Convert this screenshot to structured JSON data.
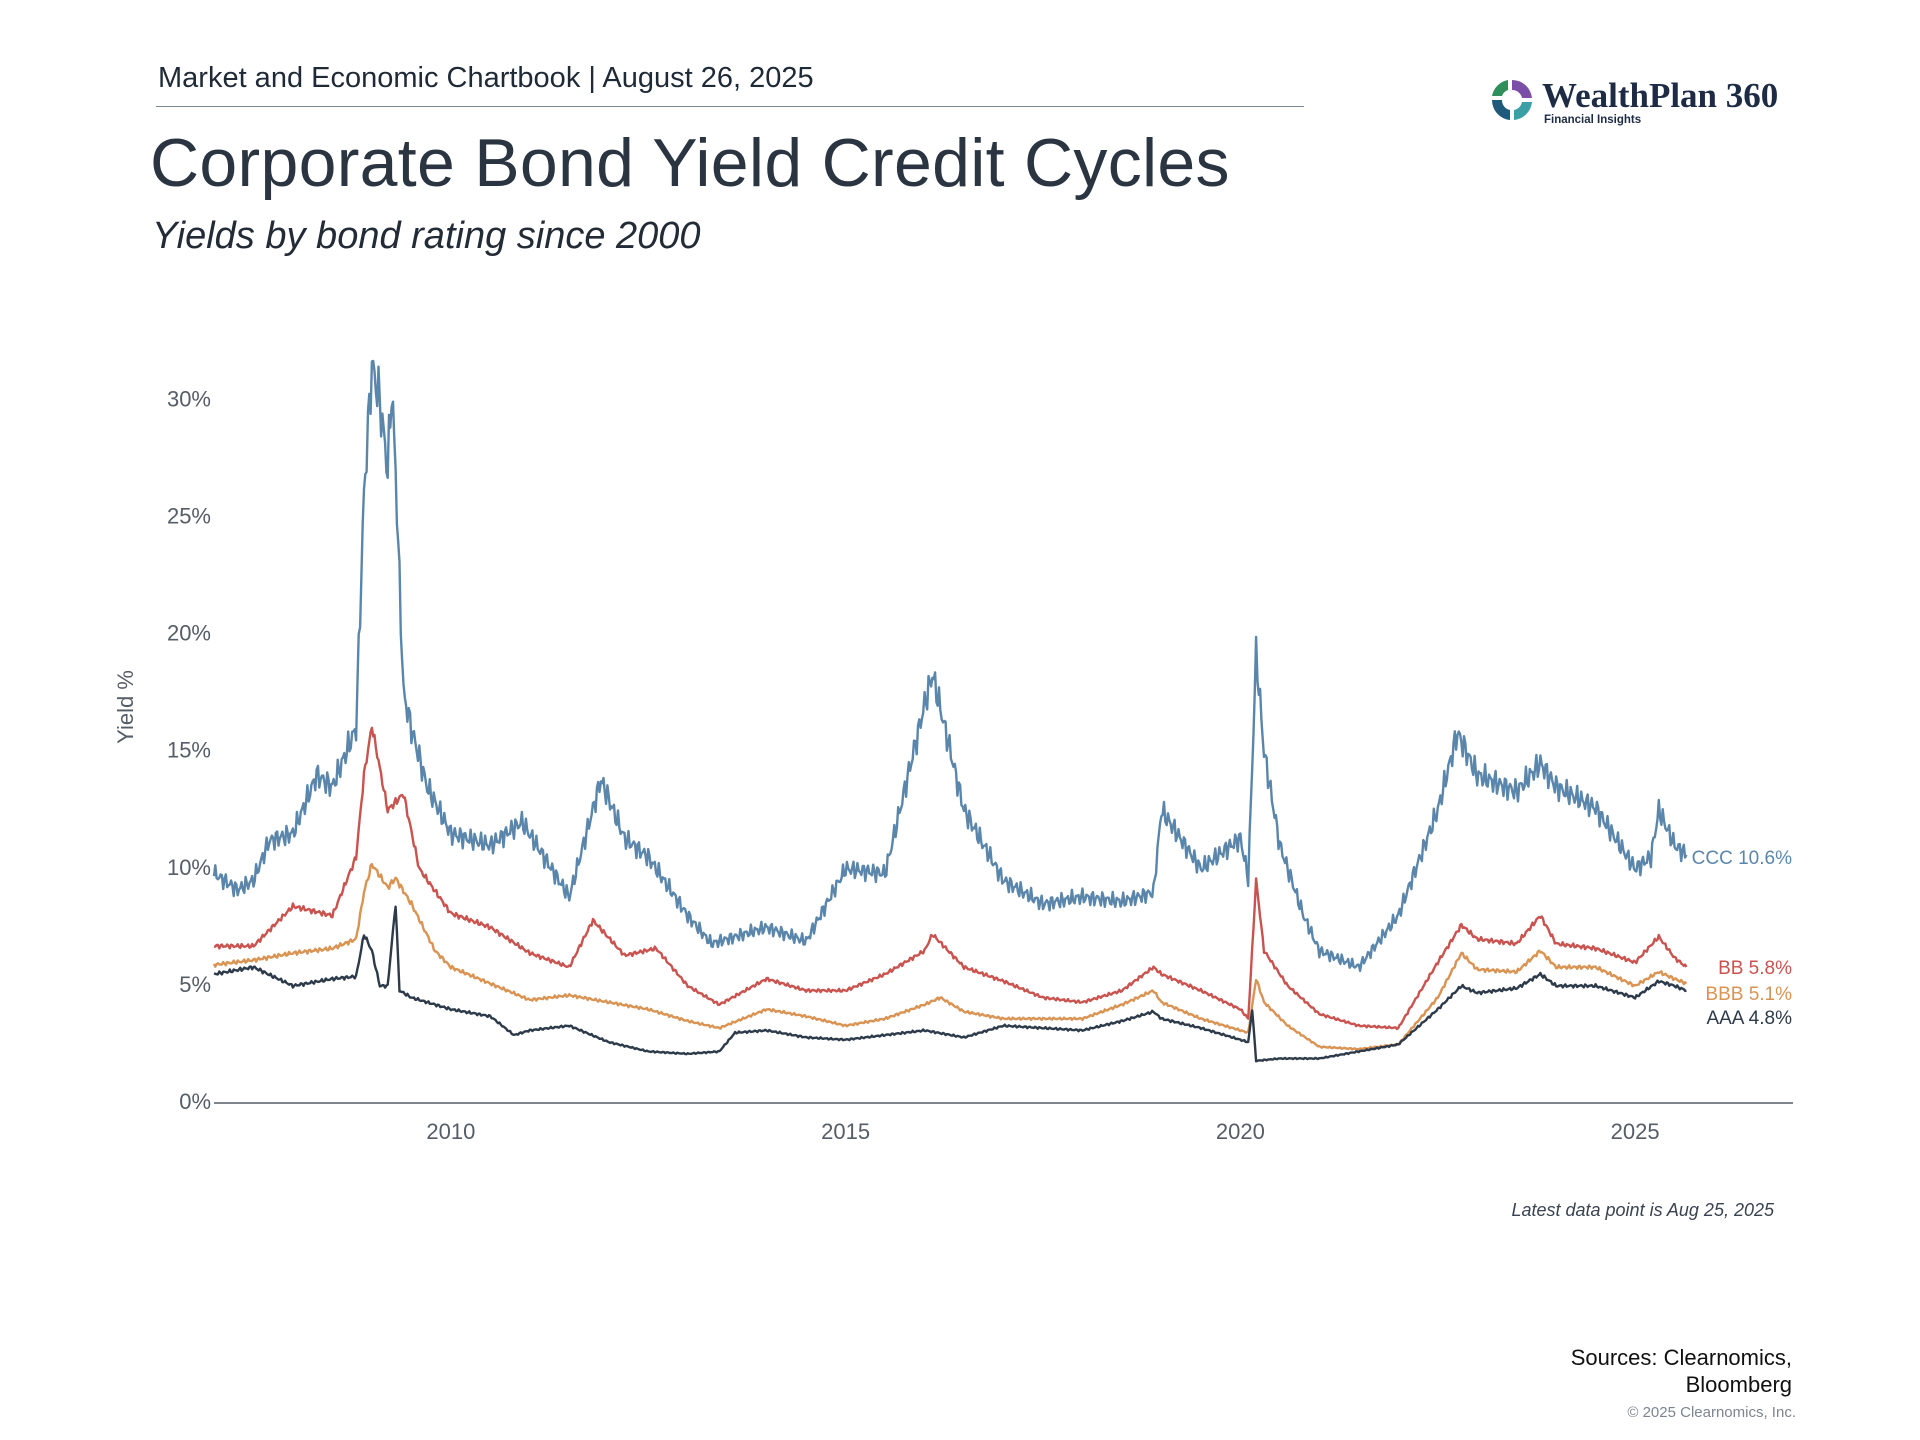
{
  "header": {
    "chartbook": "Market and Economic Chartbook | August 26, 2025",
    "title": "Corporate Bond Yield Credit Cycles",
    "subtitle": "Yields by bond rating since 2000"
  },
  "logo": {
    "name": "WealthPlan 360",
    "tagline": "Financial Insights"
  },
  "footer": {
    "note": "Latest data point is Aug 25, 2025",
    "sources_line1": "Sources: Clearnomics,",
    "sources_line2": "Bloomberg",
    "copyright": "© 2025 Clearnomics, Inc."
  },
  "chart_data": {
    "type": "line",
    "ylabel": "Yield %",
    "xlim": [
      2007.0,
      2027.0
    ],
    "ylim": [
      0,
      33
    ],
    "y_ticks": [
      0,
      5,
      10,
      15,
      20,
      25,
      30
    ],
    "y_tick_labels": [
      "0%",
      "5%",
      "10%",
      "15%",
      "20%",
      "25%",
      "30%"
    ],
    "x_ticks": [
      2010,
      2015,
      2020,
      2025
    ],
    "x_tick_labels": [
      "2010",
      "2015",
      "2020",
      "2025"
    ],
    "grid": false,
    "series": [
      {
        "name": "CCC",
        "end_label": "CCC 10.6%",
        "color": "#5b86ab",
        "x": [
          2007.0,
          2007.3,
          2007.5,
          2007.7,
          2008.0,
          2008.3,
          2008.5,
          2008.7,
          2008.8,
          2008.9,
          2009.0,
          2009.1,
          2009.2,
          2009.25,
          2009.3,
          2009.4,
          2009.5,
          2009.7,
          2010.0,
          2010.5,
          2010.9,
          2011.5,
          2011.9,
          2012.2,
          2012.5,
          2013.0,
          2013.3,
          2014.0,
          2014.5,
          2015.0,
          2015.5,
          2016.0,
          2016.1,
          2016.5,
          2017.0,
          2017.5,
          2018.0,
          2018.5,
          2018.9,
          2019.0,
          2019.5,
          2020.0,
          2020.1,
          2020.2,
          2020.3,
          2020.5,
          2020.8,
          2021.0,
          2021.5,
          2022.0,
          2022.5,
          2022.75,
          2023.0,
          2023.5,
          2023.8,
          2024.0,
          2024.5,
          2025.0,
          2025.2,
          2025.3,
          2025.5,
          2025.65
        ],
        "y": [
          9.8,
          9.1,
          9.5,
          11.2,
          11.5,
          14.0,
          13.5,
          15.2,
          16.0,
          26.0,
          31.5,
          30.0,
          27.0,
          30.5,
          27.0,
          17.5,
          16.0,
          13.5,
          11.5,
          11.0,
          12.0,
          8.8,
          13.8,
          11.3,
          10.5,
          8.0,
          6.8,
          7.5,
          6.9,
          10.0,
          9.8,
          17.0,
          18.3,
          12.5,
          9.5,
          8.5,
          8.8,
          8.6,
          9.0,
          12.5,
          10.0,
          11.3,
          9.6,
          19.2,
          15.0,
          11.0,
          8.0,
          6.5,
          5.8,
          8.0,
          12.5,
          15.8,
          14.0,
          13.3,
          14.5,
          13.5,
          12.6,
          10.0,
          10.5,
          12.5,
          11.0,
          10.6
        ]
      },
      {
        "name": "BB",
        "end_label": "BB 5.8%",
        "color": "#c9534f",
        "x": [
          2007.0,
          2007.5,
          2008.0,
          2008.5,
          2008.8,
          2008.9,
          2009.0,
          2009.2,
          2009.4,
          2009.6,
          2010.0,
          2010.5,
          2011.0,
          2011.5,
          2011.8,
          2012.2,
          2012.6,
          2013.0,
          2013.4,
          2014.0,
          2014.5,
          2015.0,
          2015.5,
          2016.0,
          2016.1,
          2016.5,
          2017.0,
          2017.5,
          2018.0,
          2018.5,
          2018.9,
          2019.0,
          2019.5,
          2020.0,
          2020.1,
          2020.2,
          2020.3,
          2020.6,
          2021.0,
          2021.5,
          2022.0,
          2022.5,
          2022.8,
          2023.0,
          2023.5,
          2023.8,
          2024.0,
          2024.5,
          2025.0,
          2025.3,
          2025.5,
          2025.65
        ],
        "y": [
          6.7,
          6.7,
          8.4,
          8.0,
          10.5,
          14.0,
          16.1,
          12.5,
          13.2,
          10.0,
          8.1,
          7.5,
          6.4,
          5.8,
          7.8,
          6.3,
          6.6,
          5.0,
          4.2,
          5.3,
          4.8,
          4.8,
          5.5,
          6.5,
          7.2,
          5.8,
          5.2,
          4.5,
          4.3,
          4.8,
          5.8,
          5.5,
          4.8,
          4.0,
          3.6,
          9.5,
          6.5,
          5.0,
          3.8,
          3.3,
          3.2,
          6.0,
          7.6,
          7.0,
          6.8,
          8.0,
          6.8,
          6.6,
          6.0,
          7.1,
          6.2,
          5.8
        ]
      },
      {
        "name": "BBB",
        "end_label": "BBB 5.1%",
        "color": "#d99353",
        "x": [
          2007.0,
          2007.5,
          2008.0,
          2008.5,
          2008.8,
          2008.9,
          2009.0,
          2009.2,
          2009.3,
          2009.5,
          2009.8,
          2010.0,
          2010.5,
          2011.0,
          2011.5,
          2012.0,
          2012.5,
          2013.0,
          2013.4,
          2014.0,
          2014.5,
          2015.0,
          2015.5,
          2016.0,
          2016.2,
          2016.5,
          2017.0,
          2017.5,
          2018.0,
          2018.5,
          2018.9,
          2019.0,
          2019.5,
          2020.0,
          2020.1,
          2020.2,
          2020.3,
          2020.6,
          2021.0,
          2021.5,
          2022.0,
          2022.5,
          2022.8,
          2023.0,
          2023.5,
          2023.8,
          2024.0,
          2024.5,
          2025.0,
          2025.3,
          2025.5,
          2025.65
        ],
        "y": [
          5.9,
          6.1,
          6.4,
          6.6,
          7.0,
          9.0,
          10.2,
          9.2,
          9.6,
          8.5,
          6.5,
          5.8,
          5.1,
          4.4,
          4.6,
          4.3,
          4.0,
          3.5,
          3.2,
          4.0,
          3.7,
          3.3,
          3.6,
          4.2,
          4.5,
          3.9,
          3.6,
          3.6,
          3.6,
          4.2,
          4.8,
          4.3,
          3.6,
          3.1,
          3.0,
          5.3,
          4.3,
          3.3,
          2.4,
          2.3,
          2.5,
          4.5,
          6.4,
          5.7,
          5.6,
          6.5,
          5.8,
          5.8,
          5.0,
          5.6,
          5.3,
          5.1
        ]
      },
      {
        "name": "AAA",
        "end_label": "AAA 4.8%",
        "color": "#2c3a4a",
        "x": [
          2007.0,
          2007.5,
          2008.0,
          2008.5,
          2008.8,
          2008.9,
          2009.0,
          2009.1,
          2009.2,
          2009.3,
          2009.35,
          2009.5,
          2010.0,
          2010.5,
          2010.8,
          2011.0,
          2011.5,
          2012.0,
          2012.5,
          2013.0,
          2013.4,
          2013.6,
          2014.0,
          2014.5,
          2015.0,
          2015.5,
          2016.0,
          2016.5,
          2017.0,
          2017.5,
          2018.0,
          2018.5,
          2018.9,
          2019.0,
          2019.5,
          2020.0,
          2020.1,
          2020.15,
          2020.2,
          2020.5,
          2021.0,
          2021.5,
          2022.0,
          2022.5,
          2022.8,
          2023.0,
          2023.5,
          2023.8,
          2024.0,
          2024.5,
          2025.0,
          2025.3,
          2025.5,
          2025.65
        ],
        "y": [
          5.5,
          5.8,
          5.0,
          5.3,
          5.4,
          7.2,
          6.5,
          5.0,
          5.0,
          8.5,
          4.8,
          4.5,
          4.0,
          3.7,
          2.9,
          3.1,
          3.3,
          2.6,
          2.2,
          2.1,
          2.2,
          3.0,
          3.1,
          2.8,
          2.7,
          2.9,
          3.1,
          2.8,
          3.3,
          3.2,
          3.1,
          3.5,
          3.9,
          3.6,
          3.2,
          2.7,
          2.6,
          4.0,
          1.8,
          1.9,
          1.9,
          2.2,
          2.5,
          4.0,
          5.0,
          4.7,
          4.9,
          5.5,
          5.0,
          5.0,
          4.5,
          5.2,
          5.0,
          4.8
        ]
      }
    ]
  }
}
